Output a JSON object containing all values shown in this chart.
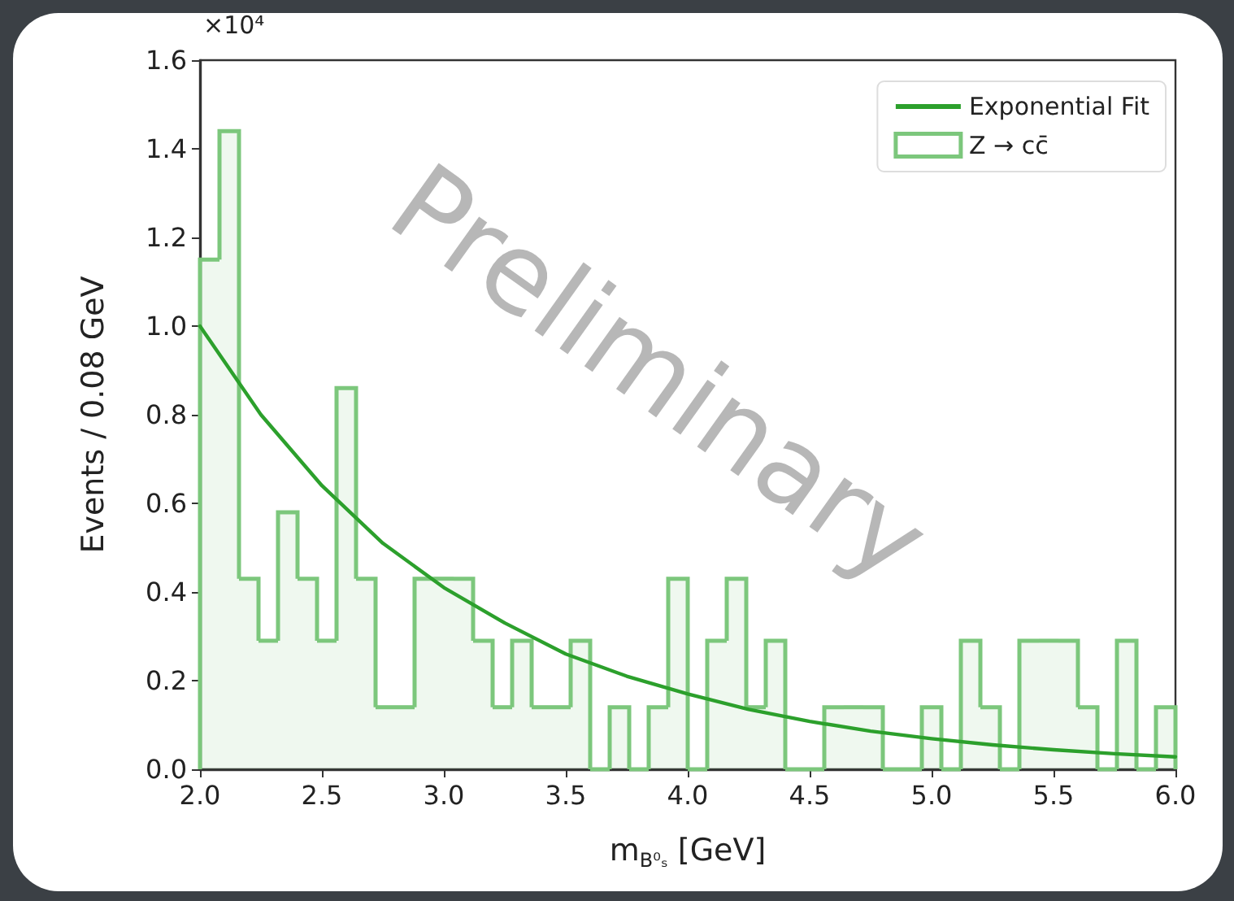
{
  "chart_data": {
    "type": "histogram",
    "xlabel": "m$_{B⁰ₛ}$ [GeV]",
    "ylabel": "Events / 0.08 GeV",
    "annotations": [
      "×10⁴",
      "Preliminary"
    ],
    "bins": [
      2.0,
      2.08,
      2.16,
      2.24,
      2.32,
      2.4,
      2.48,
      2.56,
      2.64,
      2.72,
      2.8,
      2.88,
      2.96,
      3.04,
      3.12,
      3.2,
      3.28,
      3.36,
      3.44,
      3.52,
      3.6,
      3.68,
      3.76,
      3.84,
      3.92,
      4.0,
      4.08,
      4.16,
      4.24,
      4.32,
      4.4,
      4.48,
      4.56,
      4.64,
      4.72,
      4.8,
      4.88,
      4.96,
      5.04,
      5.12,
      5.2,
      5.28,
      5.36,
      5.44,
      5.52,
      5.6,
      5.68,
      5.76,
      5.84,
      5.92,
      6.0
    ],
    "series": [
      {
        "name": "Exponential Fit",
        "type": "line",
        "color": "#2ca02c",
        "x": [
          2.0,
          2.25,
          2.5,
          2.75,
          3.0,
          3.25,
          3.5,
          3.75,
          4.0,
          4.25,
          4.5,
          4.75,
          5.0,
          5.25,
          5.5,
          5.75,
          6.0
        ],
        "values": [
          1.0,
          0.8,
          0.64,
          0.51,
          0.41,
          0.33,
          0.26,
          0.21,
          0.17,
          0.135,
          0.108,
          0.086,
          0.069,
          0.055,
          0.044,
          0.035,
          0.028
        ]
      },
      {
        "name": "Z → cc̄",
        "color": "#7cc77c",
        "values": [
          1.15,
          1.44,
          0.43,
          0.29,
          0.58,
          0.43,
          0.29,
          0.86,
          0.43,
          0.14,
          0.14,
          0.43,
          0.43,
          0.43,
          0.29,
          0.14,
          0.29,
          0.14,
          0.14,
          0.29,
          0,
          0.14,
          0,
          0.14,
          0.43,
          0,
          0.29,
          0.43,
          0.14,
          0.29,
          0,
          0,
          0.14,
          0.14,
          0.14,
          0,
          0,
          0.14,
          0,
          0.29,
          0.14,
          0,
          0.29,
          0.29,
          0.29,
          0.14,
          0,
          0.29,
          0,
          0.14
        ]
      }
    ],
    "xlim": [
      2.0,
      6.0
    ],
    "xticks": [
      {
        "value": 2.0,
        "label": "2.0"
      },
      2.5,
      {
        "value": 3.0,
        "label": "3.0"
      },
      3.5,
      {
        "value": 4.0,
        "label": "4.0"
      },
      4.5,
      {
        "value": 5.0,
        "label": "5.0"
      },
      5.5,
      {
        "value": 6.0,
        "label": "6.0"
      }
    ],
    "ylim": [
      0,
      1.6
    ],
    "yticks": [
      {
        "value": 0,
        "label": "0.0"
      },
      0.2,
      0.4,
      0.6,
      0.8,
      {
        "value": 1.0,
        "label": "1.0"
      },
      1.2,
      1.4,
      1.6
    ],
    "grid": false,
    "legend": "top right"
  }
}
